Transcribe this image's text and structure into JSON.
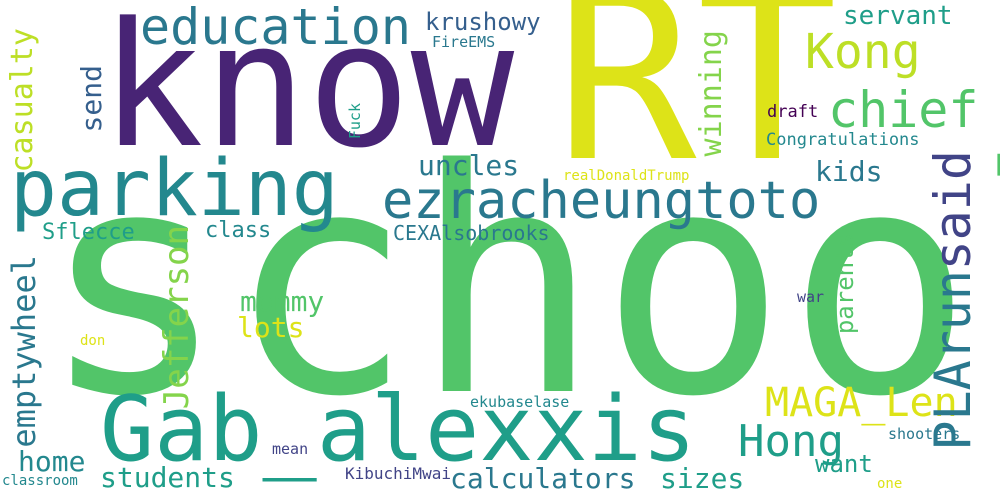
{
  "colors": {
    "background": "#ffffff",
    "yellow": "#dde318",
    "yellow_green": "#bddf26",
    "green": "#52c569",
    "green_light": "#84d44b",
    "teal": "#1f9e89",
    "teal_dark": "#23888e",
    "blue_teal": "#2a788e",
    "blue": "#355f8d",
    "indigo": "#414487",
    "purple": "#482475",
    "dark_purple": "#440154"
  },
  "words": {
    "school": "school",
    "rt": "RT",
    "know": "know",
    "parking": "parking",
    "gab_alexxis": "Gab_alexxis",
    "ezracheungtoto": "ezracheungtoto",
    "education": "education",
    "kong": "Kong",
    "chief": "chief",
    "said": "said",
    "plarun": "PLArun",
    "hong": "Hong",
    "maga_len": "MAGA_Len",
    "jefferson": "Jefferson",
    "emptywheel": "emptywheel",
    "casualty": "casualty",
    "send": "send",
    "uncles": "uncles",
    "kids": "kids",
    "winning": "winning",
    "servant": "servant",
    "krushowy": "krushowy",
    "fireems": "FireEMS",
    "fuck": "Fuck",
    "draft": "draft",
    "congratulations": "Congratulations",
    "realdonaldtrump": "realDonaldTrump",
    "sflecce": "Sflecce",
    "class": "class",
    "cexalsobrooks": "CEXAlsobrooks",
    "mommy": "mommy",
    "lots": "lots",
    "parents": "parents",
    "war": "war",
    "don": "don",
    "home": "home",
    "students": "students",
    "calculators": "calculators",
    "sizes": "sizes",
    "want": "want",
    "ekubaselase": "ekubaselase",
    "mean": "mean",
    "kibuchimwai": "KibuchiMwai",
    "shooters": "shooters",
    "classroom": "classroom",
    "one": "one"
  }
}
